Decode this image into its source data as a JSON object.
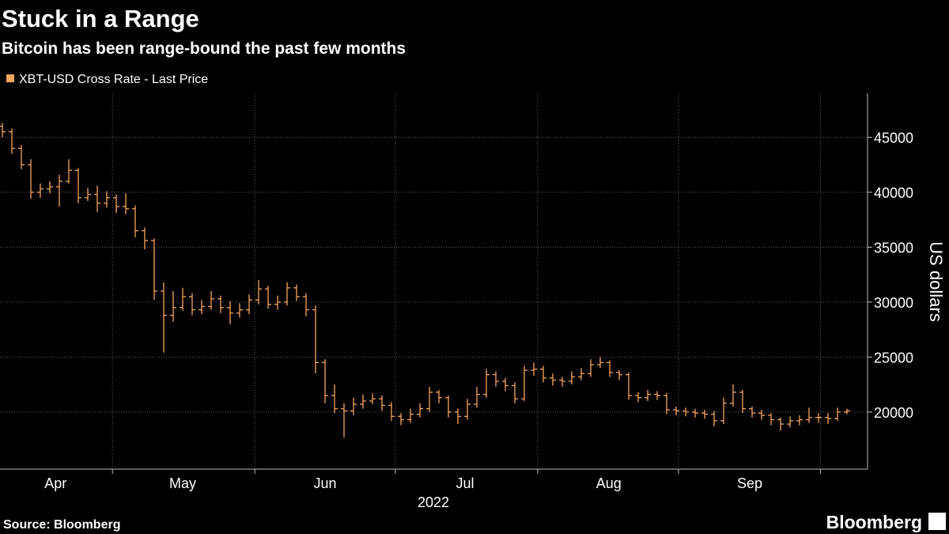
{
  "chart_data": {
    "type": "ohlc",
    "title": "Stuck in a Range",
    "subtitle": "Bitcoin has been range-bound the past few months",
    "legend": "XBT-USD Cross Rate - Last Price",
    "ylabel": "US dollars",
    "xlabel": "2022",
    "source": "Source: Bloomberg",
    "color": "#f7a55e",
    "grid": true,
    "ylim": [
      14800,
      49000
    ],
    "yticks": [
      20000,
      25000,
      30000,
      35000,
      40000,
      45000
    ],
    "xticks": [
      {
        "value": 5.6,
        "label": "Apr"
      },
      {
        "value": 19,
        "label": "May"
      },
      {
        "value": 34,
        "label": "Jun"
      },
      {
        "value": 48.75,
        "label": "Jul"
      },
      {
        "value": 63.9,
        "label": "Aug"
      },
      {
        "value": 78.75,
        "label": "Sep"
      }
    ],
    "xminorticks": [
      11.6,
      26.6,
      41.4,
      56.4,
      71.25,
      86.2
    ],
    "categories": [
      null,
      null,
      null,
      null,
      null,
      null,
      null,
      null,
      null,
      null,
      null,
      null,
      null,
      null,
      null,
      null,
      null,
      null,
      null,
      null,
      null,
      null,
      null,
      null,
      null,
      null,
      null,
      null,
      null,
      null,
      null,
      null,
      null,
      null,
      null,
      null,
      null,
      null,
      null,
      null,
      null,
      null,
      null,
      null,
      null,
      null,
      null,
      null,
      null,
      null,
      null,
      null,
      null,
      null,
      null,
      null,
      null,
      null,
      null,
      null,
      null,
      null,
      null,
      null,
      null,
      null,
      null,
      null,
      null,
      null,
      null,
      null,
      null,
      null,
      null,
      null,
      null,
      null,
      null,
      null,
      null,
      null,
      null,
      null,
      null,
      null,
      null,
      null,
      null,
      null
    ],
    "open": [
      46000,
      45500,
      44000,
      42500,
      40000,
      40300,
      40500,
      41000,
      42000,
      39500,
      39800,
      39000,
      39500,
      38700,
      38500,
      36500,
      35600,
      31000,
      28800,
      29500,
      30500,
      29300,
      29600,
      30300,
      29500,
      29000,
      29300,
      30200,
      31200,
      29800,
      30000,
      31300,
      30500,
      29300,
      24500,
      21500,
      20300,
      20100,
      20700,
      21000,
      21200,
      20600,
      19600,
      19300,
      19800,
      20300,
      21800,
      21300,
      20000,
      19600,
      20700,
      21600,
      23400,
      22800,
      22400,
      21200,
      23800,
      23900,
      23100,
      22900,
      22800,
      23200,
      23500,
      24300,
      24500,
      23600,
      23400,
      21500,
      21300,
      21600,
      21500,
      20200,
      20100,
      20000,
      19900,
      19800,
      19200,
      20800,
      21800,
      20300,
      19900,
      19700,
      19300,
      18900,
      19200,
      19300,
      19500,
      19500,
      19400,
      20000
    ],
    "high": [
      46300,
      45800,
      44300,
      43000,
      40800,
      41000,
      41600,
      43000,
      42200,
      40400,
      40600,
      40100,
      39800,
      39900,
      38800,
      36800,
      35800,
      31800,
      31000,
      31300,
      30800,
      30200,
      31000,
      30600,
      30100,
      29900,
      30700,
      32000,
      31500,
      30600,
      31800,
      31600,
      30800,
      29700,
      24800,
      22500,
      20800,
      21300,
      21600,
      21700,
      21500,
      20900,
      19900,
      20300,
      20800,
      22300,
      22000,
      21500,
      20300,
      21200,
      22300,
      23900,
      23700,
      23100,
      22700,
      24200,
      24500,
      24200,
      23500,
      23200,
      23700,
      24000,
      24800,
      25000,
      24700,
      23800,
      23600,
      21800,
      22000,
      21900,
      21700,
      20500,
      20400,
      20300,
      20200,
      20100,
      21300,
      22500,
      22000,
      20500,
      20200,
      19900,
      19500,
      19600,
      19700,
      20400,
      19900,
      19900,
      20400,
      20300
    ],
    "low": [
      45000,
      43500,
      42100,
      39400,
      39500,
      39900,
      38700,
      40800,
      39000,
      39200,
      38200,
      38600,
      38100,
      38000,
      35900,
      34800,
      30200,
      25400,
      28200,
      29200,
      28800,
      28900,
      29300,
      29000,
      28000,
      28600,
      28900,
      29800,
      29400,
      29300,
      29700,
      30100,
      28700,
      23500,
      20800,
      19900,
      17700,
      19700,
      20300,
      20700,
      20100,
      19200,
      18800,
      19000,
      19500,
      20000,
      20800,
      19500,
      18900,
      19300,
      20400,
      21300,
      22300,
      21900,
      20800,
      21000,
      23300,
      22700,
      22400,
      22300,
      22500,
      22900,
      23200,
      24000,
      23200,
      22900,
      21100,
      20900,
      21000,
      21100,
      19800,
      19700,
      19600,
      19500,
      19400,
      18700,
      18900,
      20500,
      19900,
      19500,
      19300,
      18800,
      18300,
      18600,
      18800,
      19000,
      19000,
      18900,
      19200,
      19800
    ],
    "close": [
      45500,
      44000,
      42500,
      40000,
      40300,
      40500,
      41000,
      42000,
      39500,
      39800,
      39000,
      39500,
      38700,
      38500,
      36500,
      35600,
      31000,
      28800,
      29500,
      30500,
      29300,
      29600,
      30300,
      29500,
      29000,
      29300,
      30200,
      31200,
      29800,
      30000,
      31300,
      30500,
      29300,
      24500,
      21500,
      20300,
      20100,
      20700,
      21000,
      21200,
      20600,
      19600,
      19300,
      19800,
      20300,
      21800,
      21300,
      20000,
      19600,
      20700,
      21600,
      23400,
      22800,
      22400,
      21200,
      23800,
      23900,
      23100,
      22900,
      22800,
      23200,
      23500,
      24300,
      24500,
      23600,
      23400,
      21500,
      21300,
      21600,
      21500,
      20200,
      20100,
      20000,
      19900,
      19800,
      19200,
      20800,
      21800,
      20300,
      19900,
      19700,
      19300,
      18900,
      19200,
      19300,
      19500,
      19500,
      19400,
      20000,
      20100
    ]
  },
  "brand": "Bloomberg"
}
